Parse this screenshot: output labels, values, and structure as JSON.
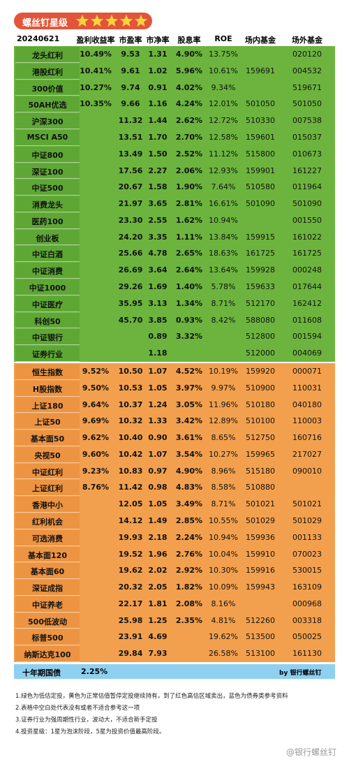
{
  "header": {
    "badge": "螺丝钉星级",
    "date": "20240621",
    "columns": [
      "盈利收益率",
      "市盈率",
      "市净率",
      "股息率",
      "ROE",
      "场内基金",
      "场外基金"
    ]
  },
  "green_rows": [
    [
      "龙头红利",
      "10.49%",
      "9.53",
      "1.31",
      "4.90%",
      "13.75%",
      null,
      "020120"
    ],
    [
      "港股红利",
      "10.41%",
      "9.61",
      "1.02",
      "5.96%",
      "10.61%",
      "159691",
      "004532"
    ],
    [
      "300价值",
      "10.27%",
      "9.74",
      "0.91",
      "4.02%",
      "9.34%",
      null,
      "519671"
    ],
    [
      "50AH优选",
      "10.35%",
      "9.66",
      "1.16",
      "4.24%",
      "12.01%",
      "501050",
      "501050"
    ],
    [
      "沪深300",
      null,
      "11.32",
      "1.44",
      "2.62%",
      "12.72%",
      "510330",
      "007538"
    ],
    [
      "MSCI A50",
      null,
      "13.51",
      "1.70",
      "2.70%",
      "12.58%",
      "159601",
      "015037"
    ],
    [
      "中证800",
      null,
      "13.49",
      "1.50",
      "2.52%",
      "11.12%",
      "515800",
      "010673"
    ],
    [
      "深证100",
      null,
      "17.56",
      "2.27",
      "2.06%",
      "12.93%",
      "159901",
      "161227"
    ],
    [
      "中证500",
      null,
      "20.67",
      "1.58",
      "1.90%",
      "7.64%",
      "510580",
      "011964"
    ],
    [
      "消费龙头",
      null,
      "21.97",
      "3.65",
      "2.81%",
      "16.61%",
      "501090",
      "501090"
    ],
    [
      "医药100",
      null,
      "23.30",
      "2.55",
      "1.62%",
      "10.94%",
      null,
      "001550"
    ],
    [
      "创业板",
      null,
      "24.20",
      "3.35",
      "1.11%",
      "13.84%",
      "159915",
      "161022"
    ],
    [
      "中证白酒",
      null,
      "25.66",
      "4.78",
      "2.65%",
      "18.63%",
      "161725",
      "161725"
    ],
    [
      "中证消费",
      null,
      "26.69",
      "3.64",
      "2.64%",
      "13.64%",
      "159928",
      "000248"
    ],
    [
      "中证1000",
      null,
      "29.26",
      "1.69",
      "1.40%",
      "5.78%",
      "159633",
      "017644"
    ],
    [
      "中证医疗",
      null,
      "35.95",
      "3.13",
      "1.34%",
      "8.71%",
      "512170",
      "162412"
    ],
    [
      "科创50",
      null,
      "45.70",
      "3.85",
      "0.93%",
      "8.42%",
      "588080",
      "011608"
    ],
    [
      "中证银行",
      null,
      null,
      "0.89",
      "3.32%",
      null,
      "512800",
      "001594"
    ],
    [
      "证券行业",
      null,
      null,
      "1.18",
      null,
      null,
      "512000",
      "004069"
    ]
  ],
  "orange_rows": [
    [
      "恒生指数",
      "9.52%",
      "10.50",
      "1.07",
      "4.52%",
      "10.19%",
      "159920",
      "000071"
    ],
    [
      "H股指数",
      "9.50%",
      "10.53",
      "1.05",
      "3.97%",
      "9.97%",
      "510900",
      "110031"
    ],
    [
      "上证180",
      "9.64%",
      "10.37",
      "1.24",
      "3.05%",
      "11.96%",
      "510180",
      "040180"
    ],
    [
      "上证50",
      "9.69%",
      "10.32",
      "1.33",
      "3.42%",
      "12.89%",
      "510100",
      "110003"
    ],
    [
      "基本面50",
      "9.62%",
      "10.40",
      "0.90",
      "3.61%",
      "8.65%",
      "512750",
      "160716"
    ],
    [
      "央视50",
      "9.60%",
      "10.42",
      "1.07",
      "3.54%",
      "10.27%",
      "159965",
      "217027"
    ],
    [
      "中证红利",
      "9.23%",
      "10.83",
      "0.97",
      "4.90%",
      "8.96%",
      "515180",
      "090010"
    ],
    [
      "上证红利",
      "8.76%",
      "11.42",
      "0.98",
      "4.83%",
      "8.58%",
      "510880",
      null
    ],
    [
      "香港中小",
      null,
      "12.05",
      "1.05",
      "3.49%",
      "8.71%",
      "501021",
      "501021"
    ],
    [
      "红利机会",
      null,
      "14.12",
      "1.49",
      "2.85%",
      "10.55%",
      "501029",
      "501029"
    ],
    [
      "可选消费",
      null,
      "19.93",
      "2.18",
      "2.24%",
      "10.94%",
      "159936",
      "001133"
    ],
    [
      "基本面120",
      null,
      "19.52",
      "1.96",
      "2.76%",
      "10.04%",
      "159910",
      "070023"
    ],
    [
      "基本面60",
      null,
      "19.62",
      "2.02",
      "2.92%",
      "10.30%",
      "159916",
      "530015"
    ],
    [
      "深证成指",
      null,
      "20.32",
      "2.05",
      "1.82%",
      "10.09%",
      "159943",
      "163109"
    ],
    [
      "中证养老",
      null,
      "22.17",
      "1.81",
      "2.08%",
      "8.16%",
      null,
      "000968"
    ],
    [
      "500低波动",
      null,
      "25.98",
      "1.25",
      "2.35%",
      "4.81%",
      "512260",
      "003318"
    ],
    [
      "标普500",
      null,
      "23.91",
      "4.69",
      null,
      "19.62%",
      "513500",
      "050025"
    ],
    [
      "纳斯达克100",
      null,
      "29.84",
      "7.93",
      null,
      "26.58%",
      "513100",
      "161130"
    ]
  ],
  "bond": {
    "name": "十年期国债",
    "yield": "2.25%",
    "credit": "by 银行螺丝钉"
  },
  "notes": [
    "1.绿色为低估定投，黄色为正常估值暂停定投继续持有，到了红色高估区域卖出，蓝色为债券类参考资料",
    "2.表格中空白处代表没有或者不适合参考这一项",
    "3.证券行业为强周期性行业，波动大，不适合新手定投",
    "4.投资星级：1星为泡沫阶段，5星为投资价值最高阶段。"
  ],
  "watermark": "@银行螺丝钉"
}
